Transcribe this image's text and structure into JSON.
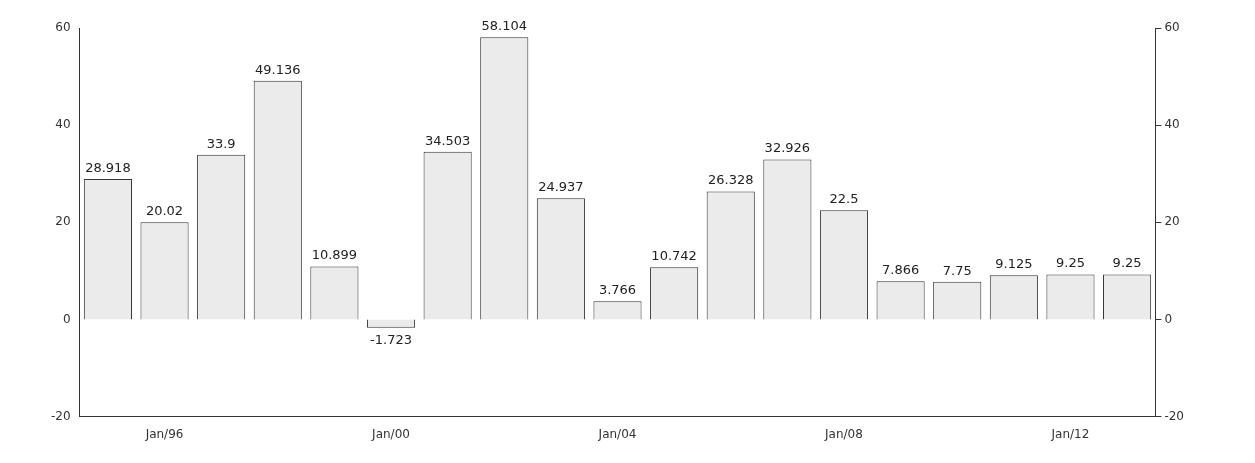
{
  "chart_data": {
    "type": "bar",
    "categories": [
      null,
      "Jan/96",
      null,
      null,
      null,
      "Jan/00",
      null,
      null,
      null,
      "Jan/04",
      null,
      null,
      null,
      "Jan/08",
      null,
      null,
      null,
      "Jan/12",
      null
    ],
    "values": [
      28.918,
      20.02,
      33.9,
      49.136,
      10.899,
      -1.723,
      34.503,
      58.104,
      24.937,
      3.766,
      10.742,
      26.328,
      32.926,
      22.5,
      7.866,
      7.75,
      9.125,
      9.25,
      9.25
    ],
    "color": "#ebebeb",
    "data_labels": true,
    "grid": false,
    "legend": false,
    "ylim": [
      -20,
      60
    ],
    "yticks": [
      -20,
      0,
      20,
      40,
      60
    ],
    "y2lim": [
      -20,
      60
    ],
    "y2ticks": [
      -20,
      0,
      20,
      40,
      60
    ]
  }
}
